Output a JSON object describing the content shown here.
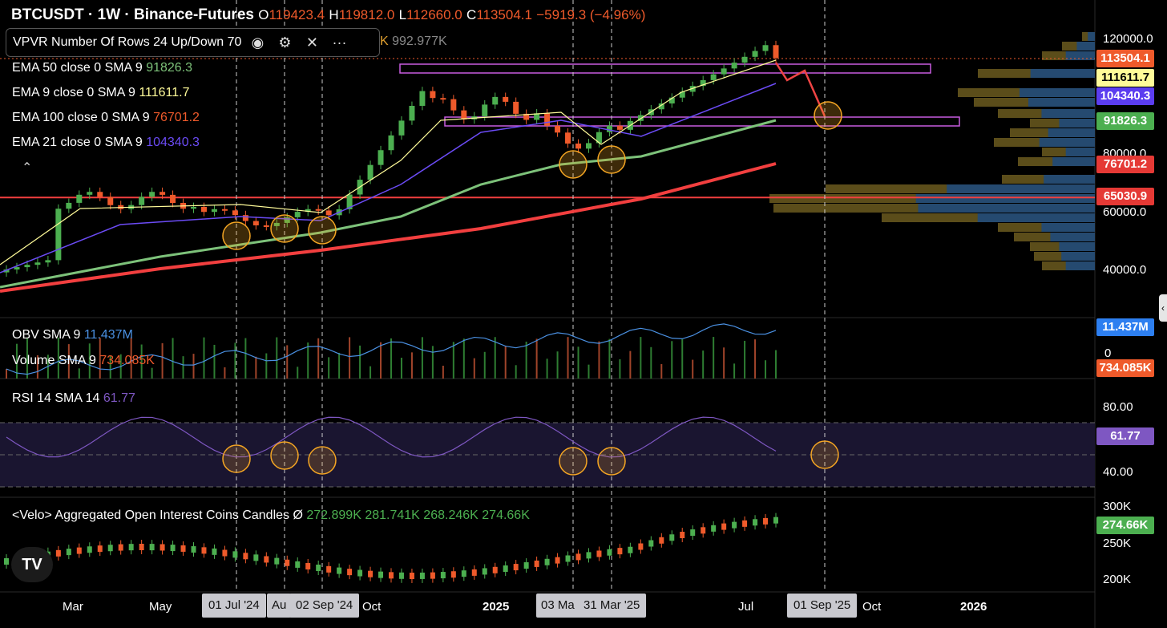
{
  "header": {
    "symbol": "BTCUSDT · 1W · Binance-Futures",
    "o": "119423.4",
    "h": "119812.0",
    "l": "112660.0",
    "c": "113504.1",
    "change": "−5919.3 (−4.96%)"
  },
  "vpvr": {
    "label": "VPVR Number Of Rows 24 Up/Down 70",
    "extra": "992.977K"
  },
  "indicators": {
    "ema50": {
      "label": "EMA 50 close 0 SMA 9",
      "value": "91826.3",
      "color": "#7dc27a"
    },
    "ema9": {
      "label": "EMA 9 close 0 SMA 9",
      "value": "111611.7",
      "color": "#fffb99"
    },
    "ema100": {
      "label": "EMA 100 close 0 SMA 9",
      "value": "76701.2",
      "color": "#f23f3f"
    },
    "ema21": {
      "label": "EMA 21 close 0 SMA 9",
      "value": "104340.3",
      "color": "#6b4bf5"
    }
  },
  "obv": {
    "label": "OBV SMA 9",
    "value": "11.437M"
  },
  "volume": {
    "label": "Volume SMA 9",
    "value": "734.085K"
  },
  "rsi": {
    "label": "RSI 14 SMA 14",
    "value": "61.77"
  },
  "oi": {
    "label": "<Velo> Aggregated Open Interest Coins Candles Ø",
    "o": "272.899K",
    "h": "281.741K",
    "l": "268.246K",
    "c": "274.66K"
  },
  "price_axis": [
    "120000.0",
    "80000.0",
    "60000.0",
    "40000.0"
  ],
  "price_tags": [
    {
      "value": "113504.1",
      "bg": "#ef5a2b",
      "fg": "#fff"
    },
    {
      "value": "111611.7",
      "bg": "#fffb99",
      "fg": "#000"
    },
    {
      "value": "104340.3",
      "bg": "#5b3df0",
      "fg": "#fff"
    },
    {
      "value": "91826.3",
      "bg": "#4caf50",
      "fg": "#fff"
    },
    {
      "value": "76701.2",
      "bg": "#e53935",
      "fg": "#fff"
    },
    {
      "value": "65030.9",
      "bg": "#e53935",
      "fg": "#fff"
    }
  ],
  "obv_axis": {
    "zero": "0",
    "tag_obv": "11.437M",
    "tag_vol": "734.085K"
  },
  "rsi_axis": [
    "80.00",
    "40.00"
  ],
  "rsi_tag": "61.77",
  "oi_axis": [
    "300K",
    "250K",
    "200K"
  ],
  "oi_tag": "274.66K",
  "time_axis": {
    "labels": [
      "Mar",
      "May",
      "Oct",
      "2025",
      "Jul",
      "Oct",
      "2026",
      "Au"
    ],
    "boxes": [
      "01 Jul '24",
      "02 Sep '24",
      "03 Ma",
      "31 Mar '25",
      "01 Sep '25"
    ]
  },
  "chart_data": {
    "type": "candlestick",
    "series": [
      {
        "name": "EMA 9",
        "value": 111611.7
      },
      {
        "name": "EMA 21",
        "value": 104340.3
      },
      {
        "name": "EMA 50",
        "value": 91826.3
      },
      {
        "name": "EMA 100",
        "value": 76701.2
      }
    ],
    "horizontal_level": 65030.9,
    "y_ticks": [
      120000,
      80000,
      60000,
      40000
    ],
    "close": 113504.1
  }
}
